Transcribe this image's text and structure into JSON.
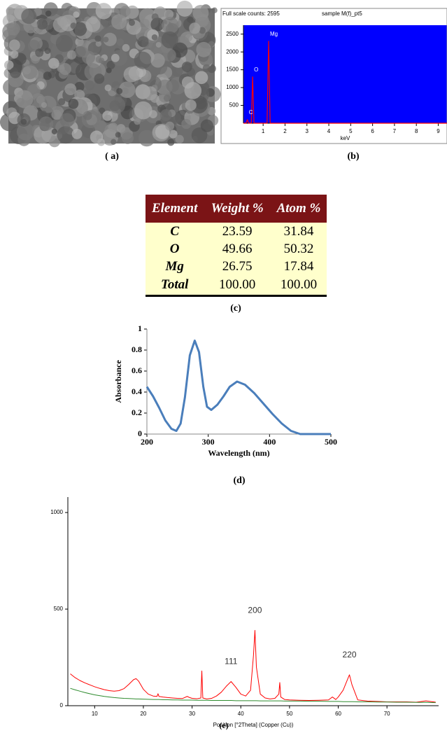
{
  "captions": [
    "( a)",
    "(b)",
    "(c)",
    "(d)",
    "(e)"
  ],
  "table": {
    "header": [
      "Element",
      "Weight %",
      "Atom %"
    ],
    "rows": [
      [
        "C",
        "23.59",
        "31.84"
      ],
      [
        "O",
        "49.66",
        "50.32"
      ],
      [
        "Mg",
        "26.75",
        "17.84"
      ],
      [
        "Total",
        "100.00",
        "100.00"
      ]
    ]
  },
  "chart_data": [
    {
      "type": "line",
      "title": "Full scale counts: 2595",
      "subtitle": "sample M(f)_pt5",
      "x_label": "keV",
      "annotations": [
        "C",
        "O",
        "Mg"
      ],
      "x": [
        0.1,
        0.22,
        0.28,
        0.34,
        0.46,
        0.52,
        0.58,
        1.18,
        1.25,
        1.32,
        9.4
      ],
      "series": [
        {
          "color": "#ff0000",
          "values": [
            0,
            0,
            100,
            0,
            0,
            1300,
            0,
            0,
            2300,
            0,
            0
          ]
        }
      ],
      "xlim": [
        0.1,
        9.4
      ],
      "ylim": [
        0,
        2750
      ],
      "xticks": [
        1,
        2,
        3,
        4,
        5,
        6,
        7,
        8,
        9
      ],
      "yticks": [
        500,
        1000,
        1500,
        2000,
        2500
      ],
      "background": "#0000ff"
    },
    {
      "type": "line",
      "x_label": "Wavelength (nm)",
      "y_label": "Absorbance",
      "x": [
        200,
        210,
        220,
        230,
        240,
        248,
        255,
        262,
        270,
        278,
        285,
        292,
        298,
        305,
        315,
        325,
        335,
        347,
        360,
        375,
        390,
        405,
        420,
        435,
        450,
        475,
        500
      ],
      "series": [
        {
          "color": "#4a7ebb",
          "values": [
            0.45,
            0.36,
            0.25,
            0.13,
            0.05,
            0.03,
            0.1,
            0.35,
            0.75,
            0.89,
            0.78,
            0.45,
            0.26,
            0.23,
            0.28,
            0.36,
            0.45,
            0.5,
            0.47,
            0.39,
            0.29,
            0.19,
            0.1,
            0.03,
            0,
            0,
            0
          ]
        }
      ],
      "xlim": [
        200,
        500
      ],
      "ylim": [
        0,
        1
      ],
      "xticks": [
        200,
        300,
        400,
        500
      ],
      "yticks": [
        0,
        0.2,
        0.4,
        0.6,
        0.8,
        1
      ]
    },
    {
      "type": "line",
      "x_label": "Position [°2Theta] (Copper (Cu))",
      "annotations": [
        "111",
        "200",
        "220"
      ],
      "x": [
        5,
        6,
        7,
        8,
        9,
        10,
        11,
        12,
        13,
        14,
        15,
        16,
        17,
        18,
        18.5,
        19,
        20,
        21,
        22,
        22.8,
        23,
        23.2,
        24,
        25,
        26,
        27,
        28,
        29,
        29.5,
        30,
        31,
        31.8,
        32,
        32.2,
        33,
        34,
        35,
        36,
        37,
        38,
        39,
        40,
        41,
        42,
        42.6,
        42.9,
        43.2,
        44,
        45,
        46,
        47,
        47.8,
        48,
        48.2,
        49,
        50,
        52,
        54,
        56,
        58,
        58.8,
        59.5,
        60,
        61,
        61.8,
        62.3,
        62.8,
        64,
        66,
        68,
        70,
        72,
        74,
        76,
        78,
        80
      ],
      "series": [
        {
          "color": "#ff0000",
          "values": [
            165,
            145,
            130,
            118,
            108,
            98,
            90,
            83,
            78,
            75,
            78,
            88,
            110,
            135,
            140,
            128,
            85,
            60,
            50,
            48,
            62,
            48,
            45,
            42,
            40,
            38,
            37,
            48,
            42,
            38,
            36,
            40,
            180,
            40,
            35,
            38,
            50,
            70,
            100,
            125,
            95,
            60,
            50,
            80,
            260,
            390,
            200,
            60,
            40,
            35,
            38,
            60,
            120,
            45,
            32,
            30,
            28,
            27,
            28,
            30,
            45,
            32,
            45,
            80,
            130,
            160,
            110,
            30,
            24,
            22,
            20,
            20,
            20,
            18,
            25,
            18
          ]
        },
        {
          "color": "#2e8b2e",
          "values": [
            90,
            82,
            75,
            68,
            62,
            56,
            52,
            48,
            45,
            42,
            40,
            38,
            37,
            36,
            35,
            35,
            34,
            33,
            32,
            32,
            32,
            32,
            31,
            31,
            30,
            30,
            29,
            29,
            29,
            29,
            28,
            28,
            28,
            28,
            28,
            27,
            27,
            27,
            27,
            27,
            26,
            26,
            26,
            26,
            26,
            26,
            26,
            25,
            25,
            25,
            25,
            25,
            25,
            25,
            24,
            24,
            24,
            23,
            23,
            22,
            22,
            22,
            22,
            21,
            21,
            21,
            21,
            20,
            20,
            19,
            19,
            18,
            18,
            17,
            17,
            16
          ]
        }
      ],
      "xlim": [
        4.5,
        80.6
      ],
      "ylim": [
        0,
        1080
      ],
      "xticks": [
        10,
        20,
        30,
        40,
        50,
        60,
        70
      ],
      "yticks": [
        0,
        500,
        1000
      ]
    }
  ]
}
